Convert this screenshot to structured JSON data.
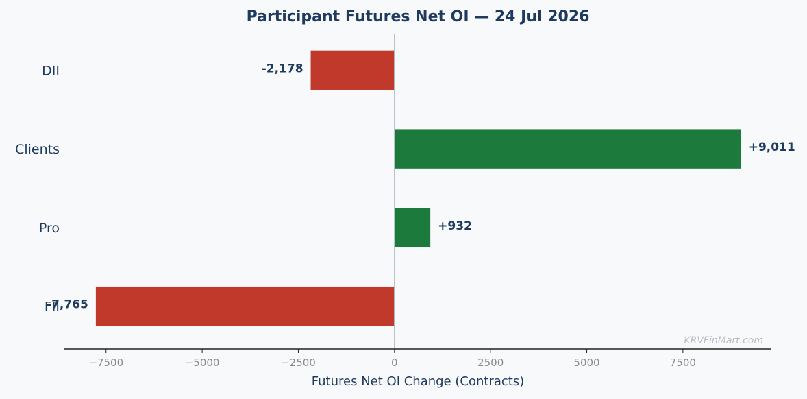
{
  "chart_data": {
    "type": "bar",
    "orientation": "horizontal",
    "title": "Participant Futures Net OI — 24 Jul 2026",
    "xlabel": "Futures Net OI Change (Contracts)",
    "ylabel": "",
    "categories": [
      "DII",
      "Clients",
      "Pro",
      "FII"
    ],
    "values": [
      -2178,
      9011,
      932,
      -7765
    ],
    "value_labels": [
      "-2,178",
      "+9,011",
      "+932",
      "-7,765"
    ],
    "xlim": [
      -8600,
      9800
    ],
    "xticks": [
      -7500,
      -5000,
      -2500,
      0,
      2500,
      5000,
      7500
    ],
    "xtick_labels": [
      "−7500",
      "−5000",
      "−2500",
      "0",
      "2500",
      "5000",
      "7500"
    ],
    "grid": false,
    "colors": {
      "positive": "#1b7a3c",
      "negative": "#c0392b",
      "zero_line": "#b0bfcc",
      "text": "#1f3a5f"
    }
  },
  "watermark": "KRVFinMart.com"
}
